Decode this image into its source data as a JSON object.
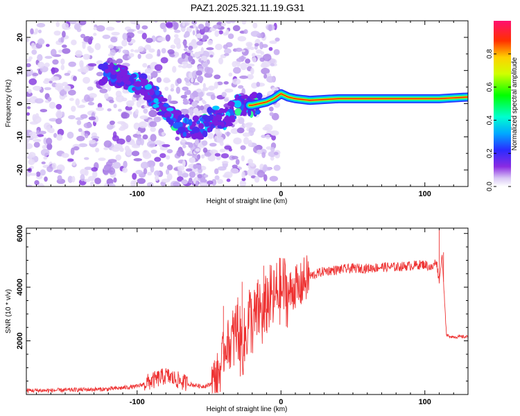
{
  "title": "PAZ1.2025.321.11.19.G31",
  "chart_data": [
    {
      "type": "heatmap",
      "name": "spectrogram",
      "xlabel": "Height of straight line (km)",
      "ylabel": "Frequency (Hz)",
      "xlim": [
        -177,
        130
      ],
      "ylim": [
        -25,
        25
      ],
      "xticks": [
        -100,
        0,
        100
      ],
      "xtick_labels": [
        "-100",
        "0",
        "100"
      ],
      "yticks": [
        -20,
        -10,
        0,
        10,
        20
      ],
      "ytick_labels": [
        "-20",
        "-10",
        "0",
        "10",
        "20"
      ],
      "colorbar": {
        "label": "Normalized spectral amplitude",
        "range": [
          0,
          1
        ],
        "ticks": [
          0.0,
          0.2,
          0.4,
          0.6,
          0.8
        ],
        "tick_labels": [
          "0.0",
          "0.2",
          "0.4",
          "0.6",
          "0.8"
        ]
      },
      "ridge": {
        "x": [
          -120,
          -110,
          -100,
          -95,
          -90,
          -85,
          -80,
          -75,
          -70,
          -65,
          -60,
          -55,
          -50,
          -45,
          -40,
          -35,
          -30,
          -25,
          -20,
          -15,
          -10,
          -5,
          0,
          5,
          10,
          20,
          40,
          60,
          80,
          100,
          110,
          130
        ],
        "y": [
          9,
          8,
          6.5,
          5,
          3,
          0.5,
          -2,
          -4,
          -6,
          -7,
          -7,
          -7.5,
          -5,
          -4,
          -5,
          -3,
          -0.5,
          -0.5,
          -0.5,
          0,
          0.5,
          1.5,
          3,
          2,
          1.5,
          1,
          1.5,
          1.5,
          1.5,
          1.5,
          1.5,
          2
        ]
      }
    },
    {
      "type": "line",
      "name": "snr",
      "xlabel": "Height of straight line (km)",
      "ylabel": "SNR (10 * v/v)",
      "xlim": [
        -177,
        130
      ],
      "ylim": [
        0,
        6200
      ],
      "xticks": [
        -100,
        0,
        100
      ],
      "xtick_labels": [
        "-100",
        "0",
        "100"
      ],
      "yticks": [
        2000,
        4000,
        6000
      ],
      "ytick_labels": [
        "2000",
        "4000",
        "6000"
      ],
      "color": "#ee3333",
      "series": [
        {
          "name": "SNR",
          "x": [
            -177,
            -160,
            -140,
            -120,
            -100,
            -90,
            -80,
            -75,
            -70,
            -65,
            -60,
            -55,
            -50,
            -45,
            -42,
            -40,
            -38,
            -35,
            -32,
            -30,
            -28,
            -25,
            -22,
            -20,
            -18,
            -15,
            -12,
            -10,
            -8,
            -5,
            -2,
            0,
            2,
            5,
            8,
            10,
            12,
            15,
            20,
            25,
            30,
            40,
            50,
            60,
            70,
            80,
            90,
            100,
            105,
            108,
            110,
            112,
            115,
            120,
            125,
            130
          ],
          "y": [
            150,
            150,
            180,
            200,
            300,
            500,
            700,
            600,
            500,
            400,
            350,
            300,
            350,
            600,
            1000,
            1500,
            2000,
            1800,
            2200,
            2600,
            1800,
            2000,
            3000,
            2600,
            2800,
            3200,
            2800,
            3400,
            3600,
            3500,
            3900,
            3800,
            4000,
            3700,
            3900,
            4100,
            3800,
            4200,
            4400,
            4500,
            4600,
            4650,
            4700,
            4700,
            4750,
            4750,
            4800,
            4850,
            4700,
            5000,
            4200,
            5200,
            2200,
            2150,
            2150,
            2150
          ],
          "dense_spikes": [
            {
              "x": -40,
              "y": 3300
            },
            {
              "x": -27,
              "y": 4200
            },
            {
              "x": -12,
              "y": 4800
            },
            {
              "x": 110,
              "y": 6200
            },
            {
              "x": 113,
              "y": 5300
            }
          ]
        }
      ]
    }
  ]
}
